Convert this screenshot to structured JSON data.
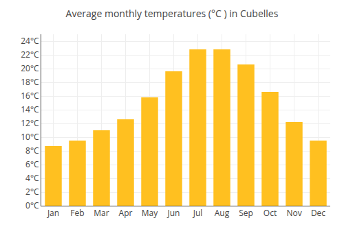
{
  "chart_data": {
    "type": "bar",
    "title": "Average monthly temperatures (°C ) in Cubelles",
    "categories": [
      "Jan",
      "Feb",
      "Mar",
      "Apr",
      "May",
      "Jun",
      "Jul",
      "Aug",
      "Sep",
      "Oct",
      "Nov",
      "Dec"
    ],
    "values": [
      8.7,
      9.5,
      11.0,
      12.6,
      15.8,
      19.6,
      22.8,
      22.8,
      20.6,
      16.6,
      12.2,
      9.5
    ],
    "color": "#FFC020",
    "ylim": [
      0,
      25
    ],
    "yticks": [
      {
        "value": 0,
        "label": "0°C"
      },
      {
        "value": 2,
        "label": "2°C"
      },
      {
        "value": 4,
        "label": "4°C"
      },
      {
        "value": 6,
        "label": "6°C"
      },
      {
        "value": 8,
        "label": "8°C"
      },
      {
        "value": 10,
        "label": "10°C"
      },
      {
        "value": 12,
        "label": "12°C"
      },
      {
        "value": 14,
        "label": "14°C"
      },
      {
        "value": 16,
        "label": "16°C"
      },
      {
        "value": 18,
        "label": "18°C"
      },
      {
        "value": 20,
        "label": "20°C"
      },
      {
        "value": 22,
        "label": "22°C"
      },
      {
        "value": 24,
        "label": "24°C"
      }
    ],
    "grid": true
  }
}
